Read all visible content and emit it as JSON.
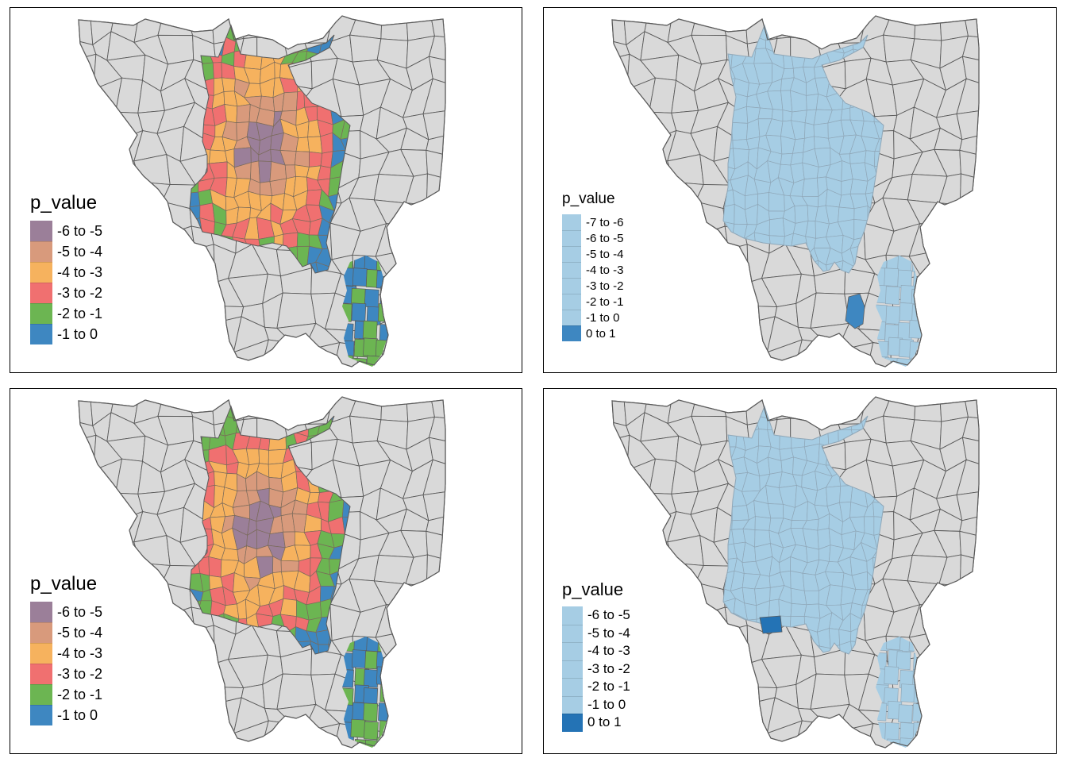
{
  "colors": {
    "land": "#d9d9d9",
    "border": "#5a5a5a",
    "light_border": "#8fa7b8",
    "ramp": [
      "#9b7f99",
      "#d89a7c",
      "#f6b25e",
      "#f07070",
      "#6cb552",
      "#3e87c1"
    ],
    "light_blue": "#a6cde4",
    "dark_blue_1": "#3e87c1",
    "dark_blue_2": "#2473b5"
  },
  "panels": [
    {
      "id": "top-left",
      "legend": {
        "title": "p_value",
        "items": [
          {
            "label": "-6 to -5",
            "color": "#9b7f99"
          },
          {
            "label": "-5 to -4",
            "color": "#d89a7c"
          },
          {
            "label": "-4 to -3",
            "color": "#f6b25e"
          },
          {
            "label": "-3 to -2",
            "color": "#f07070"
          },
          {
            "label": "-2 to -1",
            "color": "#6cb552"
          },
          {
            "label": "-1 to 0",
            "color": "#3e87c1"
          }
        ]
      }
    },
    {
      "id": "top-right",
      "legend": {
        "title": "p_value",
        "items": [
          {
            "label": "-7 to -6",
            "color": "#a6cde4"
          },
          {
            "label": "-6 to -5",
            "color": "#a6cde4"
          },
          {
            "label": "-5 to -4",
            "color": "#a6cde4"
          },
          {
            "label": "-4 to -3",
            "color": "#a6cde4"
          },
          {
            "label": "-3 to -2",
            "color": "#a6cde4"
          },
          {
            "label": "-2 to -1",
            "color": "#a6cde4"
          },
          {
            "label": "-1 to 0",
            "color": "#a6cde4"
          },
          {
            "label": "0 to 1",
            "color": "#3e87c1"
          }
        ]
      }
    },
    {
      "id": "bottom-left",
      "legend": {
        "title": "p_value",
        "items": [
          {
            "label": "-6 to -5",
            "color": "#9b7f99"
          },
          {
            "label": "-5 to -4",
            "color": "#d89a7c"
          },
          {
            "label": "-4 to -3",
            "color": "#f6b25e"
          },
          {
            "label": "-3 to -2",
            "color": "#f07070"
          },
          {
            "label": "-2 to -1",
            "color": "#6cb552"
          },
          {
            "label": "-1 to 0",
            "color": "#3e87c1"
          }
        ]
      }
    },
    {
      "id": "bottom-right",
      "legend": {
        "title": "p_value",
        "items": [
          {
            "label": "-6 to -5",
            "color": "#a6cde4"
          },
          {
            "label": "-5 to -4",
            "color": "#a6cde4"
          },
          {
            "label": "-4 to -3",
            "color": "#a6cde4"
          },
          {
            "label": "-3 to -2",
            "color": "#a6cde4"
          },
          {
            "label": "-2 to -1",
            "color": "#a6cde4"
          },
          {
            "label": "-1 to 0",
            "color": "#a6cde4"
          },
          {
            "label": "0 to 1",
            "color": "#2473b5"
          }
        ]
      }
    }
  ]
}
